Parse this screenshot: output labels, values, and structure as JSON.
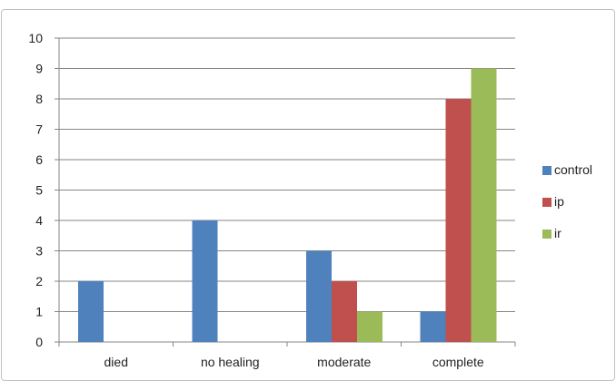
{
  "chart_data": {
    "type": "bar",
    "categories": [
      "died",
      "no healing",
      "moderate",
      "complete"
    ],
    "series": [
      {
        "name": "control",
        "values": [
          2,
          4,
          3,
          1
        ],
        "color": "#4f81bd"
      },
      {
        "name": "ip",
        "values": [
          0,
          0,
          2,
          8
        ],
        "color": "#c0504d"
      },
      {
        "name": "ir",
        "values": [
          0,
          0,
          1,
          9
        ],
        "color": "#9bbb59"
      }
    ],
    "ylim": [
      0,
      10
    ],
    "yticks": [
      0,
      1,
      2,
      3,
      4,
      5,
      6,
      7,
      8,
      9,
      10
    ],
    "grid": true,
    "legend_position": "right"
  }
}
